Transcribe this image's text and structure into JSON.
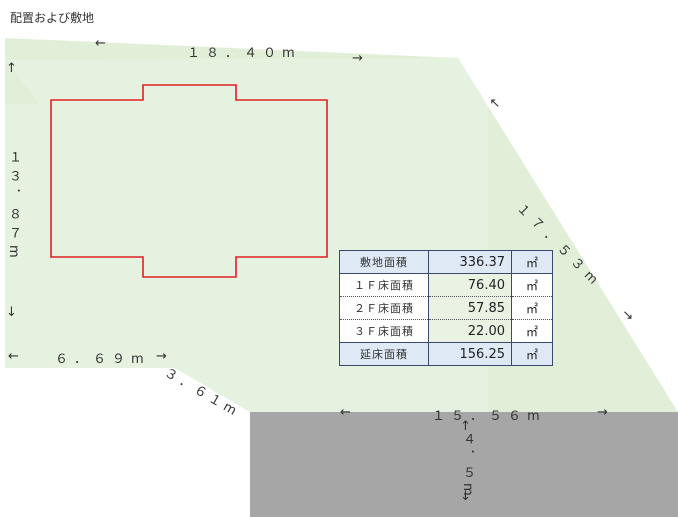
{
  "title": "配置および敷地",
  "dimensions": {
    "top_width": "１８．４０m",
    "left_height": "１３．８７m",
    "right_diagonal": "１７．５３m",
    "bottom_left": "６．６９m",
    "bottom_diagonal": "３．６１m",
    "bottom_right": "１５．５６m",
    "road_width": "４．５m"
  },
  "area_table": {
    "rows": [
      {
        "label": "敷地面積",
        "value": "336.37",
        "unit": "㎡"
      },
      {
        "label": "１Ｆ床面積",
        "value": "76.40",
        "unit": "㎡"
      },
      {
        "label": "２Ｆ床面積",
        "value": "57.85",
        "unit": "㎡"
      },
      {
        "label": "３Ｆ床面積",
        "value": "22.00",
        "unit": "㎡"
      },
      {
        "label": "延床面積",
        "value": "156.25",
        "unit": "㎡"
      }
    ]
  },
  "colors": {
    "site_fill": "#d9ecd0",
    "building_outline": "#e02020",
    "road": "#a6a6a6"
  }
}
